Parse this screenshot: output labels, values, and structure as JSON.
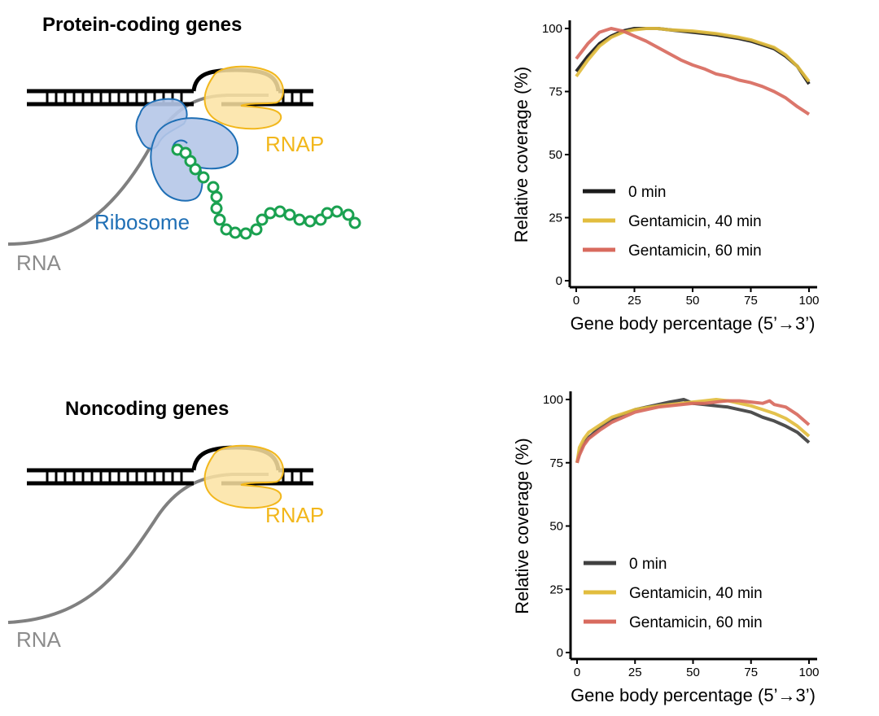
{
  "panels": {
    "top": {
      "title": "Protein-coding genes",
      "rnap_label": "RNAP",
      "ribosome_label": "Ribosome",
      "rna_label": "RNA"
    },
    "bottom": {
      "title": "Noncoding genes",
      "rnap_label": "RNAP",
      "rna_label": "RNA"
    }
  },
  "colors": {
    "dna": "#000000",
    "rnap_fill": "#fbe3a2",
    "rnap_stroke": "#f2b71c",
    "ribosome_fill": "#b5c6e8",
    "ribosome_stroke": "#1f6fb5",
    "peptide": "#1aa150",
    "rna": "#808080"
  },
  "chart_data": [
    {
      "type": "line",
      "xlabel": "Gene body percentage (5’→3’)",
      "ylabel": "Relative coverage (%)",
      "xlim": [
        0,
        100
      ],
      "ylim": [
        0,
        100
      ],
      "xticks": [
        "0",
        "25",
        "50",
        "75",
        "100"
      ],
      "yticks": [
        "0",
        "25",
        "50",
        "75",
        "100"
      ],
      "legend_position": "lower-left",
      "series": [
        {
          "name": "0 min",
          "color": "#1a1a1a",
          "x": [
            0,
            5,
            10,
            15,
            20,
            25,
            30,
            35,
            40,
            50,
            60,
            70,
            75,
            80,
            85,
            90,
            95,
            100
          ],
          "y": [
            83,
            89,
            94,
            97,
            99,
            100,
            100,
            100,
            99.5,
            98.5,
            97.5,
            96,
            95,
            93.5,
            92,
            89,
            85,
            78
          ]
        },
        {
          "name": "Gentamicin, 40 min",
          "color": "#e2bd3e",
          "x": [
            0,
            5,
            10,
            15,
            20,
            25,
            30,
            35,
            40,
            50,
            60,
            70,
            75,
            80,
            85,
            90,
            95,
            100
          ],
          "y": [
            81,
            87.5,
            93,
            96.5,
            98.5,
            99.5,
            100,
            100,
            99.5,
            99,
            98,
            96.5,
            95.5,
            94,
            92.5,
            89.5,
            85,
            79
          ]
        },
        {
          "name": "Gentamicin, 60 min",
          "color": "#d86a5e",
          "x": [
            0,
            5,
            10,
            15,
            20,
            25,
            30,
            35,
            40,
            45,
            50,
            55,
            60,
            65,
            70,
            75,
            80,
            85,
            90,
            95,
            100
          ],
          "y": [
            88,
            94,
            98.5,
            100,
            99,
            97,
            95,
            92.5,
            90,
            87.5,
            85.5,
            84,
            82,
            81,
            79.5,
            78.5,
            77,
            75,
            72.5,
            69,
            66
          ]
        }
      ]
    },
    {
      "type": "line",
      "xlabel": "Gene body percentage (5’→3’)",
      "ylabel": "Relative coverage (%)",
      "xlim": [
        0,
        100
      ],
      "ylim": [
        0,
        100
      ],
      "xticks": [
        "0",
        "25",
        "50",
        "75",
        "100"
      ],
      "yticks": [
        "0",
        "25",
        "50",
        "75",
        "100"
      ],
      "legend_position": "lower-left",
      "series": [
        {
          "name": "0 min",
          "color": "#404040",
          "x": [
            0,
            1,
            3,
            5,
            10,
            15,
            20,
            25,
            30,
            35,
            40,
            43,
            46,
            50,
            55,
            60,
            65,
            70,
            75,
            80,
            85,
            90,
            95,
            100
          ],
          "y": [
            75,
            79,
            83,
            85,
            89,
            92,
            94,
            96,
            97,
            98,
            99,
            99.5,
            100,
            98.5,
            98,
            97.5,
            97,
            96,
            95,
            93,
            91.5,
            89.5,
            87,
            83
          ]
        },
        {
          "name": "Gentamicin, 40 min",
          "color": "#e2bd3e",
          "x": [
            0,
            1,
            3,
            5,
            10,
            15,
            20,
            25,
            30,
            35,
            40,
            45,
            50,
            55,
            60,
            65,
            70,
            75,
            80,
            85,
            90,
            95,
            100
          ],
          "y": [
            75,
            81,
            84.5,
            87,
            90,
            93,
            94.5,
            96,
            96.8,
            97.5,
            98,
            98.5,
            99,
            99.5,
            100,
            99.5,
            98.5,
            97.5,
            96,
            94.5,
            92.5,
            89.5,
            85.5
          ]
        },
        {
          "name": "Gentamicin, 60 min",
          "color": "#d86a5e",
          "x": [
            0,
            1,
            3,
            5,
            10,
            15,
            20,
            25,
            30,
            35,
            40,
            45,
            50,
            55,
            60,
            65,
            70,
            75,
            80,
            83,
            85,
            90,
            95,
            100
          ],
          "y": [
            75,
            78,
            82,
            84.5,
            88,
            91,
            93,
            95,
            96,
            97,
            97.5,
            98,
            98.5,
            98.5,
            99,
            99.5,
            99.5,
            99,
            98.5,
            99.5,
            98,
            97,
            94,
            90
          ]
        }
      ]
    }
  ]
}
